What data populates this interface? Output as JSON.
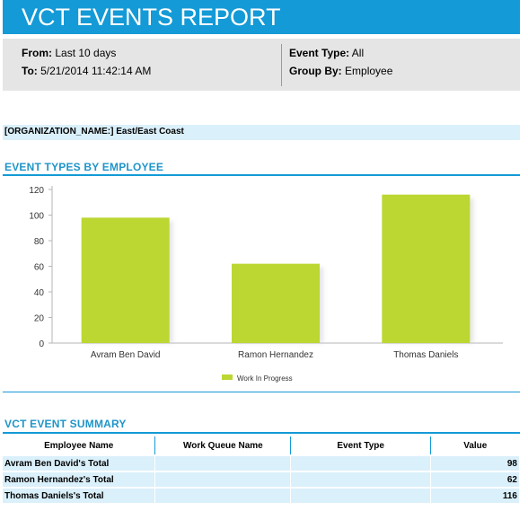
{
  "header": {
    "title": "VCT EVENTS REPORT"
  },
  "filters": {
    "from_label": "From:",
    "from_value": "Last 10 days",
    "to_label": "To:",
    "to_value": "5/21/2014 11:42:14 AM",
    "event_type_label": "Event Type:",
    "event_type_value": "All",
    "group_by_label": "Group By:",
    "group_by_value": "Employee"
  },
  "org": {
    "label": "[ORGANIZATION_NAME:]",
    "value": "East/East Coast"
  },
  "chart_section": {
    "title": "EVENT TYPES BY EMPLOYEE"
  },
  "chart_data": {
    "type": "bar",
    "categories": [
      "Avram Ben David",
      "Ramon Hernandez",
      "Thomas Daniels"
    ],
    "series": [
      {
        "name": "Work In Progress",
        "values": [
          98,
          62,
          116
        ],
        "color": "#bcd732"
      }
    ],
    "ylim": [
      0,
      120
    ],
    "yticks": [
      0,
      20,
      40,
      60,
      80,
      100,
      120
    ],
    "grid": false,
    "legend": "bottom-center"
  },
  "summary": {
    "title": "VCT EVENT SUMMARY",
    "columns": [
      "Employee Name",
      "Work Queue Name",
      "Event Type",
      "Value"
    ],
    "rows": [
      {
        "employee": "Avram Ben David's Total",
        "queue": "",
        "event_type": "",
        "value": "98"
      },
      {
        "employee": "Ramon Hernandez's Total",
        "queue": "",
        "event_type": "",
        "value": "62"
      },
      {
        "employee": "Thomas Daniels's Total",
        "queue": "",
        "event_type": "",
        "value": "116"
      }
    ]
  },
  "colors": {
    "accent": "#149ad6",
    "bar": "#bcd732",
    "light_blue": "#daf0fb",
    "info_gray": "#e5e5e5"
  }
}
